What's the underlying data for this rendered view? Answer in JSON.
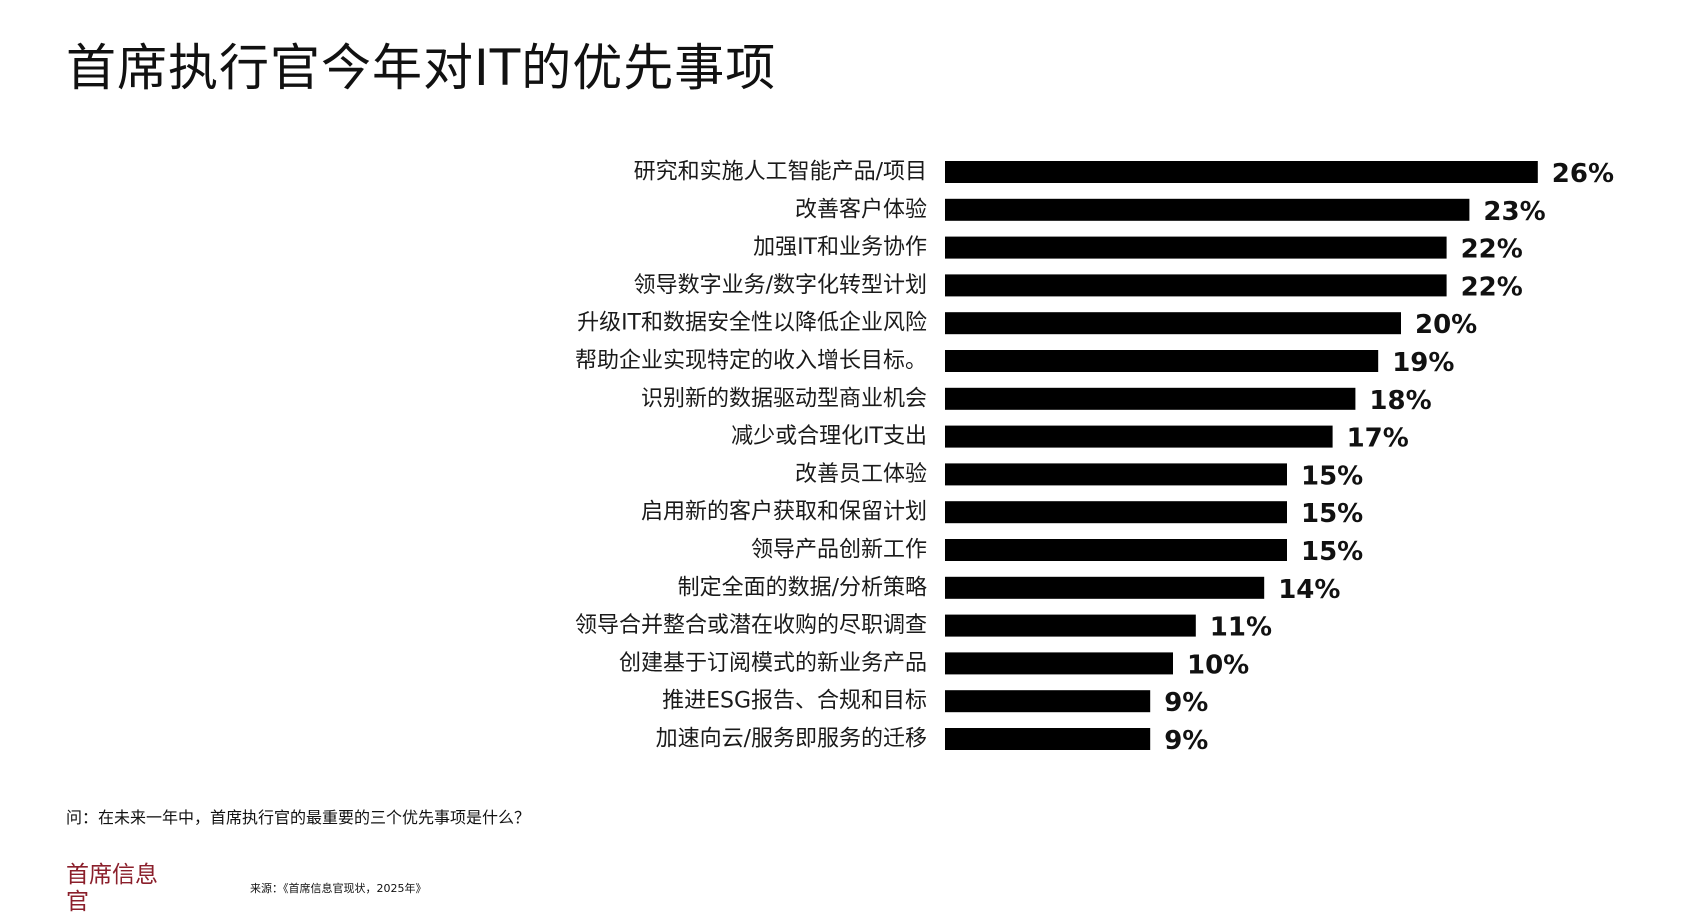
{
  "page": {
    "title": "首席执行官今年对IT的优先事项",
    "question": "问：在未来一年中，首席执行官的最重要的三个优先事项是什么？",
    "brand": "首席信息官",
    "source": "来源：《首席信息官现状，2025年》"
  },
  "chart_data": {
    "type": "bar",
    "orientation": "horizontal",
    "title": "首席执行官今年对IT的优先事项",
    "categories": [
      "研究和实施人工智能产品/项目",
      "改善客户体验",
      "加强IT和业务协作",
      "领导数字业务/数字化转型计划",
      "升级IT和数据安全性以降低企业风险",
      "帮助企业实现特定的收入增长目标。",
      "识别新的数据驱动型商业机会",
      "减少或合理化IT支出",
      "改善员工体验",
      "启用新的客户获取和保留计划",
      "领导产品创新工作",
      "制定全面的数据/分析策略",
      "领导合并整合或潜在收购的尽职调查",
      "创建基于订阅模式的新业务产品",
      "推进ESG报告、合规和目标",
      "加速向云/服务即服务的迁移"
    ],
    "values": [
      26,
      23,
      22,
      22,
      20,
      19,
      18,
      17,
      15,
      15,
      15,
      14,
      11,
      10,
      9,
      9
    ],
    "value_labels": [
      "26%",
      "23%",
      "22%",
      "22%",
      "20%",
      "19%",
      "18%",
      "17%",
      "15%",
      "15%",
      "15%",
      "14%",
      "11%",
      "10%",
      "9%",
      "9%"
    ],
    "unit": "%",
    "bar_color": "#000000",
    "grid": false,
    "legend": false
  }
}
